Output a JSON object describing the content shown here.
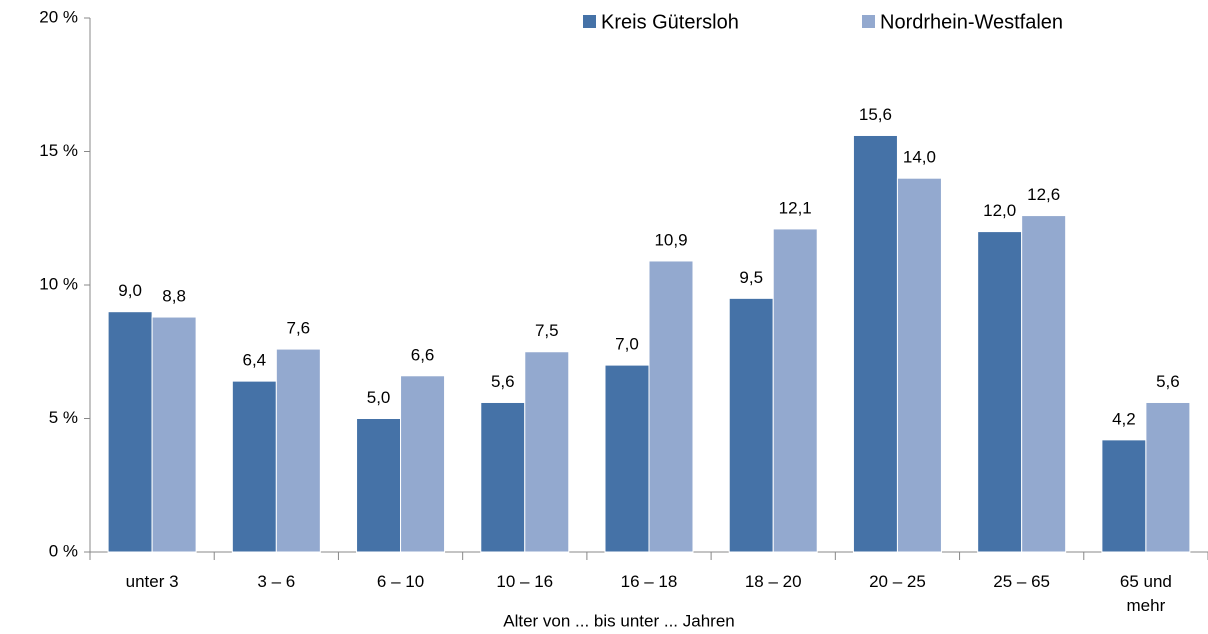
{
  "chart_data": {
    "type": "bar",
    "x_label": "Alter von ... bis unter ... Jahren",
    "categories": [
      "unter 3",
      "3 –  6",
      "6 – 10",
      "10 – 16",
      "16 – 18",
      "18 – 20",
      "20 – 25",
      "25 – 65",
      "65 und mehr"
    ],
    "series": [
      {
        "name": "Kreis Gütersloh",
        "color": "#4572a7",
        "values": [
          9.0,
          6.4,
          5.0,
          5.6,
          7.0,
          9.5,
          15.6,
          12.0,
          4.2
        ],
        "value_labels": [
          "9,0",
          "6,4",
          "5,0",
          "5,6",
          "7,0",
          "9,5",
          "15,6",
          "12,0",
          "4,2"
        ]
      },
      {
        "name": "Nordrhein-Westfalen",
        "color": "#93a9cf",
        "values": [
          8.8,
          7.6,
          6.6,
          7.5,
          10.9,
          12.1,
          14.0,
          12.6,
          5.6
        ],
        "value_labels": [
          "8,8",
          "7,6",
          "6,6",
          "7,5",
          "10,9",
          "12,1",
          "14,0",
          "12,6",
          "5,6"
        ]
      }
    ],
    "ylim": [
      0,
      20
    ],
    "yticks": [
      {
        "value": 0,
        "label": "0 %"
      },
      {
        "value": 5,
        "label": "5 %"
      },
      {
        "value": 10,
        "label": "10 %"
      },
      {
        "value": 15,
        "label": "15 %"
      },
      {
        "value": 20,
        "label": "20 %"
      }
    ],
    "legend": "top-right",
    "grid": false
  }
}
